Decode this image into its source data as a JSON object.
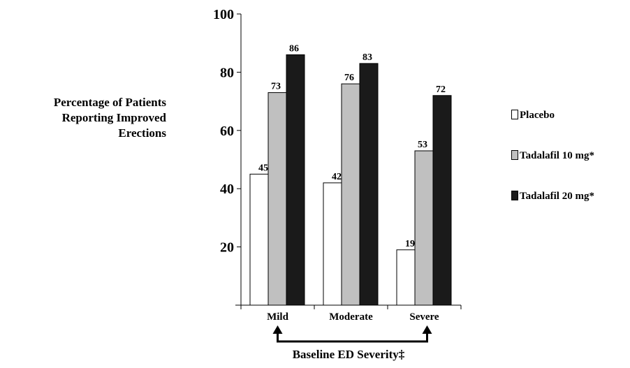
{
  "chart_data": {
    "type": "bar",
    "categories": [
      "Mild",
      "Moderate",
      "Severe"
    ],
    "series": [
      {
        "name": "Placebo",
        "values": [
          45,
          42,
          19
        ],
        "color": "#ffffff"
      },
      {
        "name": "Tadalafil 10 mg*",
        "values": [
          73,
          76,
          53
        ],
        "color": "#c0c0c0"
      },
      {
        "name": "Tadalafil 20 mg*",
        "values": [
          86,
          83,
          72
        ],
        "color": "#1a1a1a"
      }
    ],
    "ylabel_lines": [
      "Percentage of Patients",
      "Reporting Improved",
      "Erections"
    ],
    "xlabel": "Baseline ED Severity‡",
    "ylim": [
      0,
      100
    ],
    "yticks": [
      20,
      40,
      60,
      80,
      100
    ],
    "data_labels": true,
    "grid": false,
    "legend_position": "right"
  }
}
